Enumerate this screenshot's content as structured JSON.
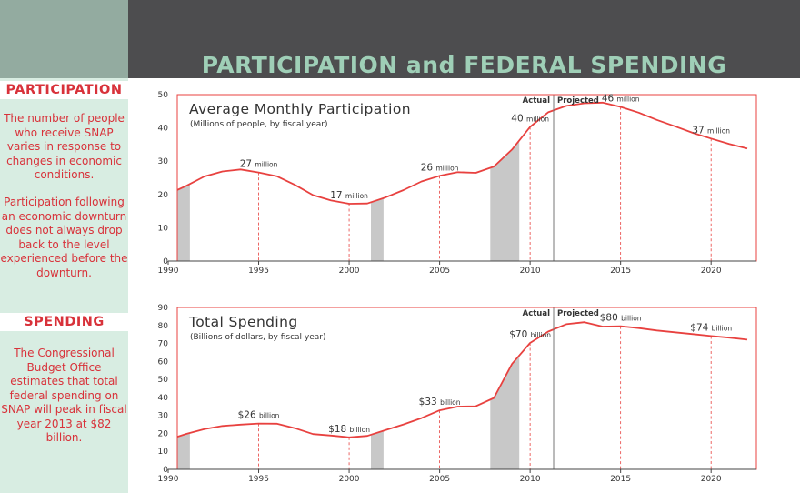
{
  "title": "PARTICIPATION and FEDERAL SPENDING",
  "sidebar": {
    "participation_heading": "PARTICIPATION",
    "participation_text_1": "The number of people who receive SNAP varies in response to changes in economic conditions.",
    "participation_text_2": "Participation following an economic downturn does not always drop back to the level experienced before the downturn.",
    "spending_heading": "SPENDING",
    "spending_text": "The Congressional Budget Office estimates that total federal spending on SNAP will peak in fiscal year 2013 at $82 billion."
  },
  "colors": {
    "line": "#e8413f",
    "recession": "#c8c8c8",
    "accent_text": "#d8323a",
    "title": "#9fcfb7"
  },
  "chart_data": [
    {
      "type": "line",
      "title": "Average Monthly Participation",
      "subtitle": "(Millions of people, by fiscal year)",
      "xlim": [
        1990,
        2022
      ],
      "ylim": [
        0,
        50
      ],
      "yticks": [
        0,
        10,
        20,
        30,
        40,
        50
      ],
      "xticks": [
        1990,
        1995,
        2000,
        2005,
        2010,
        2015,
        2020
      ],
      "actual_label": "Actual",
      "projected_label": "Projected",
      "divider_x": 2011.3,
      "recessions": [
        [
          1990.5,
          1991.2
        ],
        [
          2001.2,
          2001.9
        ],
        [
          2007.8,
          2009.4
        ]
      ],
      "x": [
        1989.5,
        1990,
        1991,
        1992,
        1993,
        1994,
        1995,
        1996,
        1997,
        1998,
        1999,
        2000,
        2001,
        2002,
        2003,
        2004,
        2005,
        2006,
        2007,
        2008,
        2009,
        2010,
        2011,
        2012,
        2013,
        2014,
        2015,
        2016,
        2017,
        2018,
        2019,
        2020,
        2021,
        2022
      ],
      "y": [
        19.5,
        20.1,
        22.6,
        25.4,
        26.9,
        27.5,
        26.6,
        25.5,
        22.9,
        19.8,
        18.2,
        17.2,
        17.3,
        19.1,
        21.3,
        23.9,
        25.6,
        26.7,
        26.5,
        28.4,
        33.5,
        40.3,
        44.7,
        46.6,
        47.4,
        47.6,
        46.3,
        44.6,
        42.4,
        40.5,
        38.5,
        36.8,
        35.2,
        33.8
      ],
      "annotations": [
        {
          "x": 1995,
          "y": 27,
          "value": "27",
          "unit": "million"
        },
        {
          "x": 2000,
          "y": 17,
          "value": "17",
          "unit": "million"
        },
        {
          "x": 2005,
          "y": 26,
          "value": "26",
          "unit": "million"
        },
        {
          "x": 2010,
          "y": 40,
          "value": "40",
          "unit": "million"
        },
        {
          "x": 2015,
          "y": 46,
          "value": "46",
          "unit": "million"
        },
        {
          "x": 2020,
          "y": 37,
          "value": "37",
          "unit": "million"
        }
      ]
    },
    {
      "type": "line",
      "title": "Total Spending",
      "subtitle": "(Billions of dollars, by fiscal year)",
      "xlim": [
        1990,
        2022
      ],
      "ylim": [
        0,
        90
      ],
      "yticks": [
        0,
        10,
        20,
        30,
        40,
        50,
        60,
        70,
        80,
        90
      ],
      "xticks": [
        1990,
        1995,
        2000,
        2005,
        2010,
        2015,
        2020
      ],
      "actual_label": "Actual",
      "projected_label": "Projected",
      "divider_x": 2011.3,
      "recessions": [
        [
          1990.5,
          1991.2
        ],
        [
          2001.2,
          2001.9
        ],
        [
          2007.8,
          2009.4
        ]
      ],
      "x": [
        1989.5,
        1990,
        1991,
        1992,
        1993,
        1994,
        1995,
        1996,
        1997,
        1998,
        1999,
        2000,
        2001,
        2002,
        2003,
        2004,
        2005,
        2006,
        2007,
        2008,
        2009,
        2010,
        2011,
        2012,
        2013,
        2014,
        2015,
        2016,
        2017,
        2018,
        2019,
        2020,
        2021,
        2022
      ],
      "y": [
        14.8,
        16.5,
        19.7,
        22.4,
        24.1,
        24.9,
        25.5,
        25.4,
        22.9,
        19.6,
        18.8,
        17.8,
        18.6,
        21.8,
        25.0,
        28.5,
        32.8,
        34.9,
        35.1,
        39.7,
        58.6,
        70.3,
        76.6,
        80.7,
        81.8,
        79.4,
        79.6,
        78.5,
        77.2,
        76.2,
        75.2,
        74.1,
        73.2,
        72.1
      ],
      "annotations": [
        {
          "x": 1995,
          "y": 26,
          "value": "$26",
          "unit": "billion"
        },
        {
          "x": 2000,
          "y": 18,
          "value": "$18",
          "unit": "billion"
        },
        {
          "x": 2005,
          "y": 33,
          "value": "$33",
          "unit": "billion"
        },
        {
          "x": 2010,
          "y": 70,
          "value": "$70",
          "unit": "billion"
        },
        {
          "x": 2015,
          "y": 80,
          "value": "$80",
          "unit": "billion"
        },
        {
          "x": 2020,
          "y": 74,
          "value": "$74",
          "unit": "billion"
        }
      ]
    }
  ]
}
